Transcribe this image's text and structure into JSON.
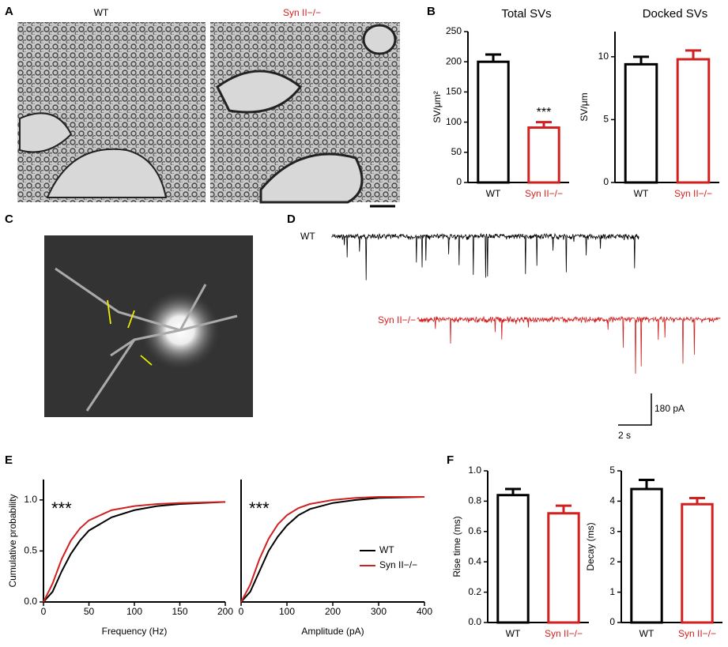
{
  "figure": {
    "panels": [
      "A",
      "B",
      "C",
      "D",
      "E",
      "F"
    ],
    "em_labels": [
      "WT",
      "Syn II−/−"
    ],
    "trace_labels": [
      "WT",
      "Syn II−/−"
    ],
    "scale_bar": [
      "180 pA",
      "2 s"
    ]
  },
  "chart_data": [
    {
      "type": "bar",
      "title": "Total SVs",
      "ylabel": "SV/μm²",
      "categories": [
        "WT",
        "Syn II−/−"
      ],
      "values": [
        200,
        91
      ],
      "errors": [
        12,
        9
      ],
      "colors": [
        "#000000",
        "#d02020"
      ],
      "ylim": [
        0,
        250
      ],
      "yticks": [
        0,
        50,
        100,
        150,
        200,
        250
      ],
      "annotation": "***"
    },
    {
      "type": "bar",
      "title": "Docked SVs",
      "ylabel": "SV/μm",
      "categories": [
        "WT",
        "Syn II−/−"
      ],
      "values": [
        9.4,
        9.8
      ],
      "errors": [
        0.6,
        0.7
      ],
      "colors": [
        "#000000",
        "#d02020"
      ],
      "ylim": [
        0,
        12
      ],
      "yticks": [
        0,
        5,
        10
      ]
    },
    {
      "type": "line",
      "xlabel": "Frequency (Hz)",
      "ylabel": "Cumulative probability",
      "x": [
        0,
        10,
        20,
        30,
        40,
        50,
        75,
        100,
        125,
        150,
        200
      ],
      "series": [
        {
          "name": "WT",
          "color": "#000000",
          "values": [
            0,
            0.1,
            0.3,
            0.47,
            0.6,
            0.7,
            0.83,
            0.9,
            0.94,
            0.96,
            0.98
          ]
        },
        {
          "name": "Syn II−/−",
          "color": "#d02020",
          "values": [
            0,
            0.18,
            0.42,
            0.6,
            0.72,
            0.8,
            0.9,
            0.94,
            0.96,
            0.97,
            0.98
          ]
        }
      ],
      "xlim": [
        0,
        200
      ],
      "xticks": [
        0,
        50,
        100,
        150,
        200
      ],
      "ylim": [
        0,
        1.2
      ],
      "yticks": [
        {
          "value": 0,
          "label": "0.0"
        },
        0.5,
        {
          "value": 1,
          "label": "1.0"
        }
      ],
      "annotation": "***"
    },
    {
      "type": "line",
      "xlabel": "Amplitude (pA)",
      "x": [
        0,
        20,
        40,
        60,
        80,
        100,
        125,
        150,
        200,
        250,
        300,
        400
      ],
      "series": [
        {
          "name": "WT",
          "color": "#000000",
          "values": [
            0,
            0.1,
            0.3,
            0.5,
            0.64,
            0.75,
            0.85,
            0.91,
            0.97,
            1.0,
            1.02,
            1.03
          ]
        },
        {
          "name": "Syn II−/−",
          "color": "#d02020",
          "values": [
            0,
            0.17,
            0.42,
            0.62,
            0.76,
            0.85,
            0.92,
            0.96,
            1.0,
            1.02,
            1.03,
            1.03
          ]
        }
      ],
      "xlim": [
        0,
        400
      ],
      "xticks": [
        0,
        100,
        200,
        300,
        400
      ],
      "ylim": [
        0,
        1.2
      ],
      "annotation": "***",
      "legend": "right"
    },
    {
      "type": "bar",
      "ylabel": "Rise time (ms)",
      "categories": [
        "WT",
        "Syn II−/−"
      ],
      "values": [
        0.84,
        0.72
      ],
      "errors": [
        0.04,
        0.05
      ],
      "colors": [
        "#000000",
        "#d02020"
      ],
      "ylim": [
        0,
        1
      ],
      "yticks": [
        {
          "value": 0,
          "label": "0.0"
        },
        0.2,
        0.4,
        0.6,
        0.8,
        {
          "value": 1,
          "label": "1.0"
        }
      ]
    },
    {
      "type": "bar",
      "ylabel": "Decay (ms)",
      "categories": [
        "WT",
        "Syn II−/−"
      ],
      "values": [
        4.4,
        3.9
      ],
      "errors": [
        0.3,
        0.2
      ],
      "colors": [
        "#000000",
        "#d02020"
      ],
      "ylim": [
        0,
        5
      ],
      "yticks": [
        0,
        1,
        2,
        3,
        4,
        5
      ]
    }
  ]
}
